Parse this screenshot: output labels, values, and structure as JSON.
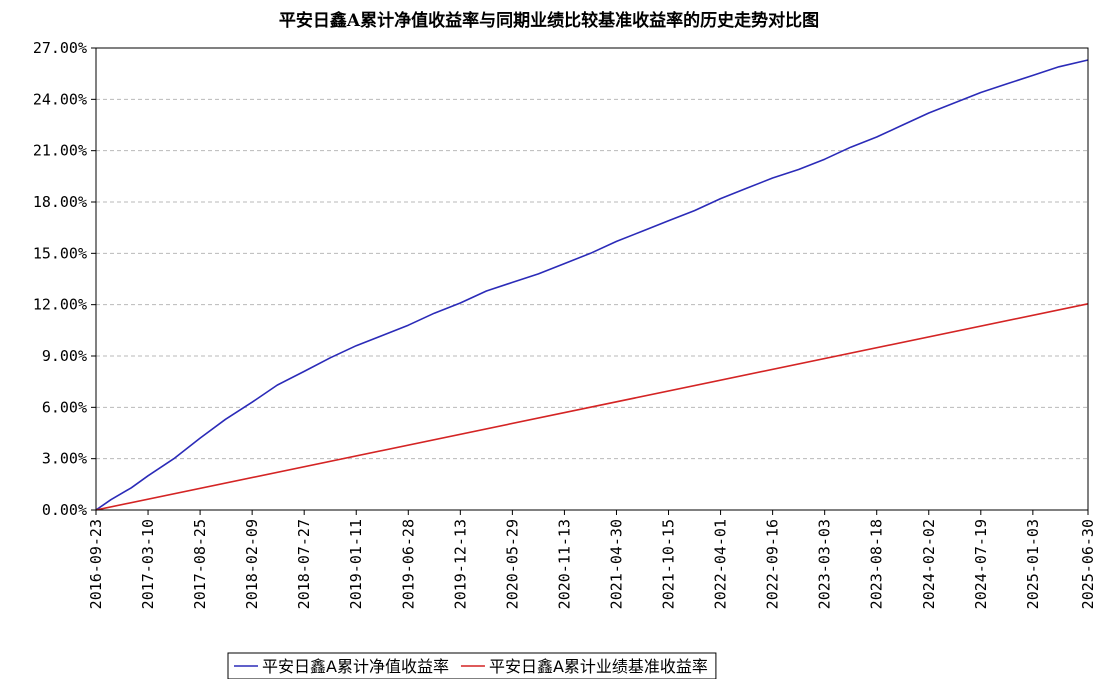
{
  "chart_data": {
    "type": "line",
    "title": "平安日鑫A累计净值收益率与同期业绩比较基准收益率的历史走势对比图",
    "xlabel": "",
    "ylabel": "",
    "ylim": [
      0,
      27
    ],
    "y_ticks": [
      "0.00%",
      "3.00%",
      "6.00%",
      "9.00%",
      "12.00%",
      "15.00%",
      "18.00%",
      "21.00%",
      "24.00%",
      "27.00%"
    ],
    "x_ticks": [
      "2016-09-23",
      "2017-03-10",
      "2017-08-25",
      "2018-02-09",
      "2018-07-27",
      "2019-01-11",
      "2019-06-28",
      "2019-12-13",
      "2020-05-29",
      "2020-11-13",
      "2021-04-30",
      "2021-10-15",
      "2022-04-01",
      "2022-09-16",
      "2023-03-03",
      "2023-08-18",
      "2024-02-02",
      "2024-07-19",
      "2025-01-03",
      "2025-06-30"
    ],
    "grid": true,
    "legend_position": "bottom",
    "series": [
      {
        "name": "平安日鑫A累计净值收益率",
        "color": "#2b2bb8",
        "x": [
          "2016-09-23",
          "2016-11-10",
          "2017-01-15",
          "2017-03-10",
          "2017-06-01",
          "2017-08-25",
          "2017-11-15",
          "2018-02-09",
          "2018-05-01",
          "2018-07-27",
          "2018-10-20",
          "2019-01-11",
          "2019-04-05",
          "2019-06-28",
          "2019-09-20",
          "2019-12-13",
          "2020-03-06",
          "2020-05-29",
          "2020-08-21",
          "2020-11-13",
          "2021-02-05",
          "2021-04-30",
          "2021-07-23",
          "2021-10-15",
          "2022-01-07",
          "2022-04-01",
          "2022-06-24",
          "2022-09-16",
          "2022-12-09",
          "2023-03-03",
          "2023-05-26",
          "2023-08-18",
          "2023-11-10",
          "2024-02-02",
          "2024-04-26",
          "2024-07-19",
          "2024-10-11",
          "2025-01-03",
          "2025-03-28",
          "2025-06-30"
        ],
        "values": [
          0.0,
          0.6,
          1.3,
          2.0,
          3.0,
          4.2,
          5.3,
          6.3,
          7.3,
          8.1,
          8.9,
          9.6,
          10.2,
          10.8,
          11.5,
          12.1,
          12.8,
          13.3,
          13.8,
          14.4,
          15.0,
          15.7,
          16.3,
          16.9,
          17.5,
          18.2,
          18.8,
          19.4,
          19.9,
          20.5,
          21.2,
          21.8,
          22.5,
          23.2,
          23.8,
          24.4,
          24.9,
          25.4,
          25.9,
          26.3
        ]
      },
      {
        "name": "平安日鑫A累计业绩基准收益率",
        "color": "#d42424",
        "x": [
          "2016-09-23",
          "2025-06-30"
        ],
        "values": [
          0.0,
          12.05
        ]
      }
    ]
  }
}
